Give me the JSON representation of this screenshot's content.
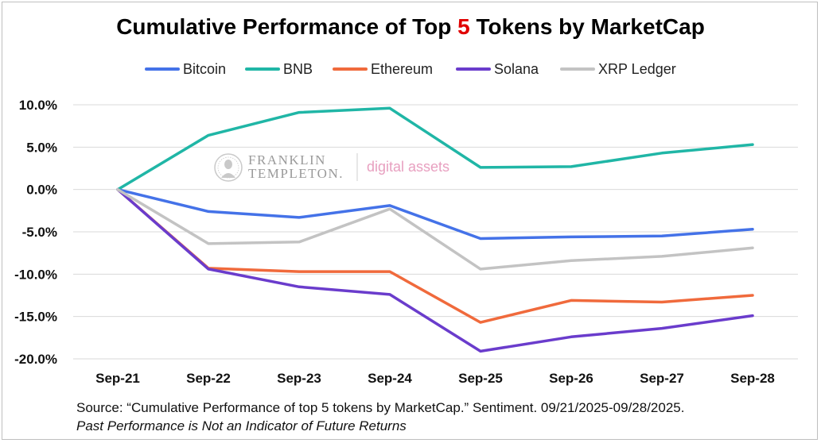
{
  "title_prefix": "Cumulative Performance of Top ",
  "title_highlight": "5",
  "title_suffix": " Tokens by MarketCap",
  "colors": {
    "highlight": "#e00000",
    "grid": "#d9d9d9"
  },
  "watermark": {
    "line1": "FRANKLIN",
    "line2": "TEMPLETON.",
    "tagline": "digital assets",
    "logo": "franklin-portrait-icon"
  },
  "chart_data": {
    "type": "line",
    "x": [
      "Sep-21",
      "Sep-22",
      "Sep-23",
      "Sep-24",
      "Sep-25",
      "Sep-26",
      "Sep-27",
      "Sep-28"
    ],
    "ylim": [
      -20,
      10
    ],
    "yticks": [
      10,
      5,
      0,
      -5,
      -10,
      -15,
      -20
    ],
    "ytick_labels": [
      "10.0%",
      "5.0%",
      "0.0%",
      "-5.0%",
      "-10.0%",
      "-15.0%",
      "-20.0%"
    ],
    "grid": true,
    "legend_position": "top",
    "series": [
      {
        "name": "Bitcoin",
        "color": "#4472e8",
        "values": [
          0,
          -2.6,
          -3.3,
          -1.9,
          -5.8,
          -5.6,
          -5.5,
          -4.7
        ]
      },
      {
        "name": "BNB",
        "color": "#20b6a6",
        "values": [
          0,
          6.4,
          9.1,
          9.6,
          2.6,
          2.7,
          4.3,
          5.3
        ]
      },
      {
        "name": "Ethereum",
        "color": "#f06a3c",
        "values": [
          0,
          -9.3,
          -9.7,
          -9.7,
          -15.7,
          -13.1,
          -13.3,
          -12.5
        ]
      },
      {
        "name": "Solana",
        "color": "#6a3ccc",
        "values": [
          0,
          -9.4,
          -11.5,
          -12.4,
          -19.1,
          -17.4,
          -16.4,
          -14.9
        ]
      },
      {
        "name": "XRP Ledger",
        "color": "#c3c3c3",
        "values": [
          0,
          -6.4,
          -6.2,
          -2.3,
          -9.4,
          -8.4,
          -7.9,
          -6.9
        ]
      }
    ]
  },
  "source_text": "Source: “Cumulative Performance of top 5 tokens by MarketCap.” Sentiment. 09/21/2025-09/28/2025.",
  "disclaimer": "Past Performance is Not an Indicator of Future Returns"
}
